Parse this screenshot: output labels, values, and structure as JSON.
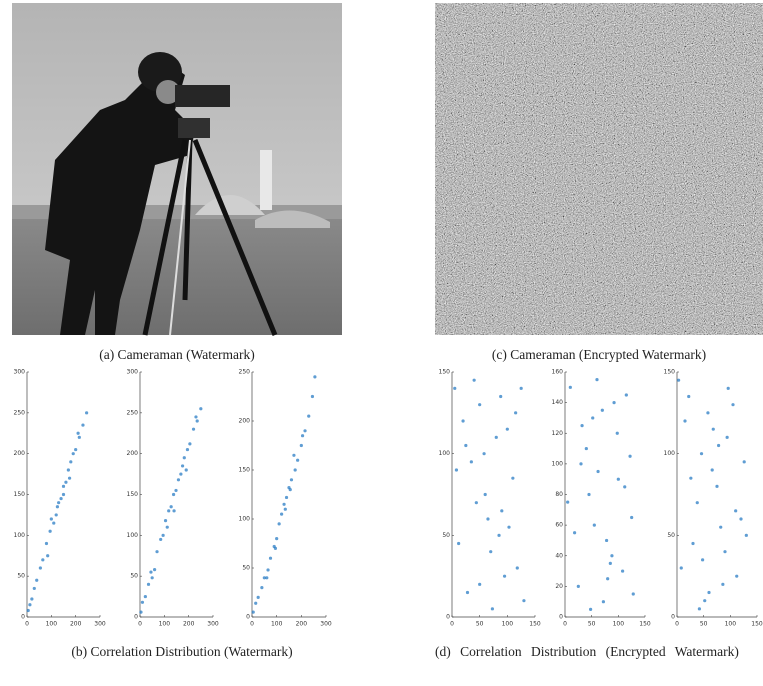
{
  "figure": {
    "captions": {
      "a": "(a) Cameraman (Watermark)",
      "b": "(b) Correlation Distribution (Watermark)",
      "c": "(c) Cameraman (Encrypted Watermark)",
      "d": "(d) Correlation Distribution (Encrypted Watermark)"
    },
    "plots": [
      {
        "type": "scatter",
        "color": "#2a7cc4",
        "xlim": [
          0,
          300
        ],
        "ylim": [
          0,
          300
        ],
        "xticks": [
          0,
          100,
          200,
          300
        ],
        "yticks": [
          0,
          50,
          100,
          150,
          200,
          250,
          300
        ],
        "x": [
          5,
          12,
          20,
          30,
          40,
          55,
          65,
          80,
          95,
          110,
          120,
          130,
          140,
          150,
          160,
          170,
          180,
          190,
          200,
          215,
          230,
          245,
          100,
          150,
          175,
          125,
          85,
          210
        ],
        "y": [
          8,
          15,
          22,
          35,
          45,
          60,
          70,
          90,
          105,
          115,
          125,
          140,
          145,
          160,
          165,
          180,
          190,
          200,
          205,
          220,
          235,
          250,
          120,
          150,
          170,
          135,
          75,
          225
        ]
      },
      {
        "type": "scatter",
        "color": "#2a7cc4",
        "xlim": [
          0,
          300
        ],
        "ylim": [
          0,
          300
        ],
        "xticks": [
          0,
          100,
          200,
          300
        ],
        "yticks": [
          0,
          50,
          100,
          150,
          200,
          250,
          300
        ],
        "x": [
          4,
          10,
          22,
          35,
          45,
          50,
          70,
          85,
          95,
          105,
          118,
          128,
          138,
          148,
          158,
          168,
          182,
          195,
          205,
          220,
          235,
          250,
          60,
          140,
          175,
          112,
          190,
          230
        ],
        "y": [
          6,
          18,
          25,
          40,
          55,
          48,
          80,
          95,
          100,
          118,
          130,
          135,
          150,
          155,
          168,
          175,
          195,
          205,
          212,
          230,
          240,
          255,
          58,
          130,
          185,
          110,
          180,
          245
        ]
      },
      {
        "type": "scatter",
        "color": "#2a7cc4",
        "xlim": [
          0,
          300
        ],
        "ylim": [
          0,
          250
        ],
        "xticks": [
          0,
          100,
          200,
          300
        ],
        "yticks": [
          0,
          50,
          100,
          150,
          200,
          250
        ],
        "x": [
          5,
          15,
          25,
          40,
          50,
          65,
          75,
          90,
          100,
          110,
          120,
          130,
          140,
          150,
          160,
          175,
          185,
          200,
          215,
          230,
          245,
          255,
          135,
          155,
          170,
          95,
          60,
          205
        ],
        "y": [
          5,
          14,
          20,
          30,
          40,
          48,
          60,
          72,
          80,
          95,
          105,
          115,
          122,
          132,
          140,
          150,
          160,
          175,
          190,
          205,
          225,
          245,
          110,
          130,
          165,
          70,
          40,
          185
        ]
      },
      {
        "type": "scatter",
        "color": "#2a7cc4",
        "xlim": [
          0,
          150
        ],
        "ylim": [
          0,
          150
        ],
        "xticks": [
          0,
          50,
          100,
          150
        ],
        "yticks": [
          0,
          50,
          100,
          150
        ],
        "x": [
          5,
          20,
          35,
          50,
          65,
          80,
          95,
          110,
          125,
          12,
          28,
          44,
          58,
          73,
          88,
          103,
          118,
          8,
          40,
          70,
          100,
          130,
          60,
          90,
          25,
          115,
          50,
          85
        ],
        "y": [
          140,
          120,
          95,
          130,
          60,
          110,
          25,
          85,
          140,
          45,
          15,
          70,
          100,
          5,
          135,
          55,
          30,
          90,
          145,
          40,
          115,
          10,
          75,
          65,
          105,
          125,
          20,
          50
        ]
      },
      {
        "type": "scatter",
        "color": "#2a7cc4",
        "xlim": [
          0,
          150
        ],
        "ylim": [
          0,
          160
        ],
        "xticks": [
          0,
          50,
          100,
          150
        ],
        "yticks": [
          0,
          20,
          40,
          60,
          80,
          100,
          120,
          140,
          160
        ],
        "x": [
          10,
          25,
          40,
          55,
          70,
          85,
          100,
          115,
          128,
          5,
          32,
          48,
          62,
          78,
          92,
          108,
          122,
          18,
          45,
          72,
          98,
          125,
          60,
          88,
          30,
          112,
          52,
          80
        ],
        "y": [
          150,
          20,
          110,
          60,
          135,
          35,
          90,
          145,
          15,
          75,
          125,
          5,
          95,
          50,
          140,
          30,
          105,
          55,
          80,
          10,
          120,
          65,
          155,
          40,
          100,
          85,
          130,
          25
        ]
      },
      {
        "type": "scatter",
        "color": "#2a7cc4",
        "xlim": [
          0,
          150
        ],
        "ylim": [
          0,
          150
        ],
        "xticks": [
          0,
          50,
          100,
          150
        ],
        "yticks": [
          0,
          50,
          100,
          150
        ],
        "x": [
          8,
          22,
          38,
          52,
          68,
          82,
          96,
          112,
          126,
          15,
          30,
          46,
          60,
          75,
          90,
          105,
          120,
          3,
          42,
          66,
          94,
          130,
          58,
          86,
          26,
          110,
          48,
          78
        ],
        "y": [
          30,
          135,
          70,
          10,
          115,
          55,
          140,
          25,
          95,
          120,
          45,
          100,
          15,
          80,
          40,
          130,
          60,
          145,
          5,
          90,
          110,
          50,
          125,
          20,
          85,
          65,
          35,
          105
        ]
      }
    ]
  }
}
